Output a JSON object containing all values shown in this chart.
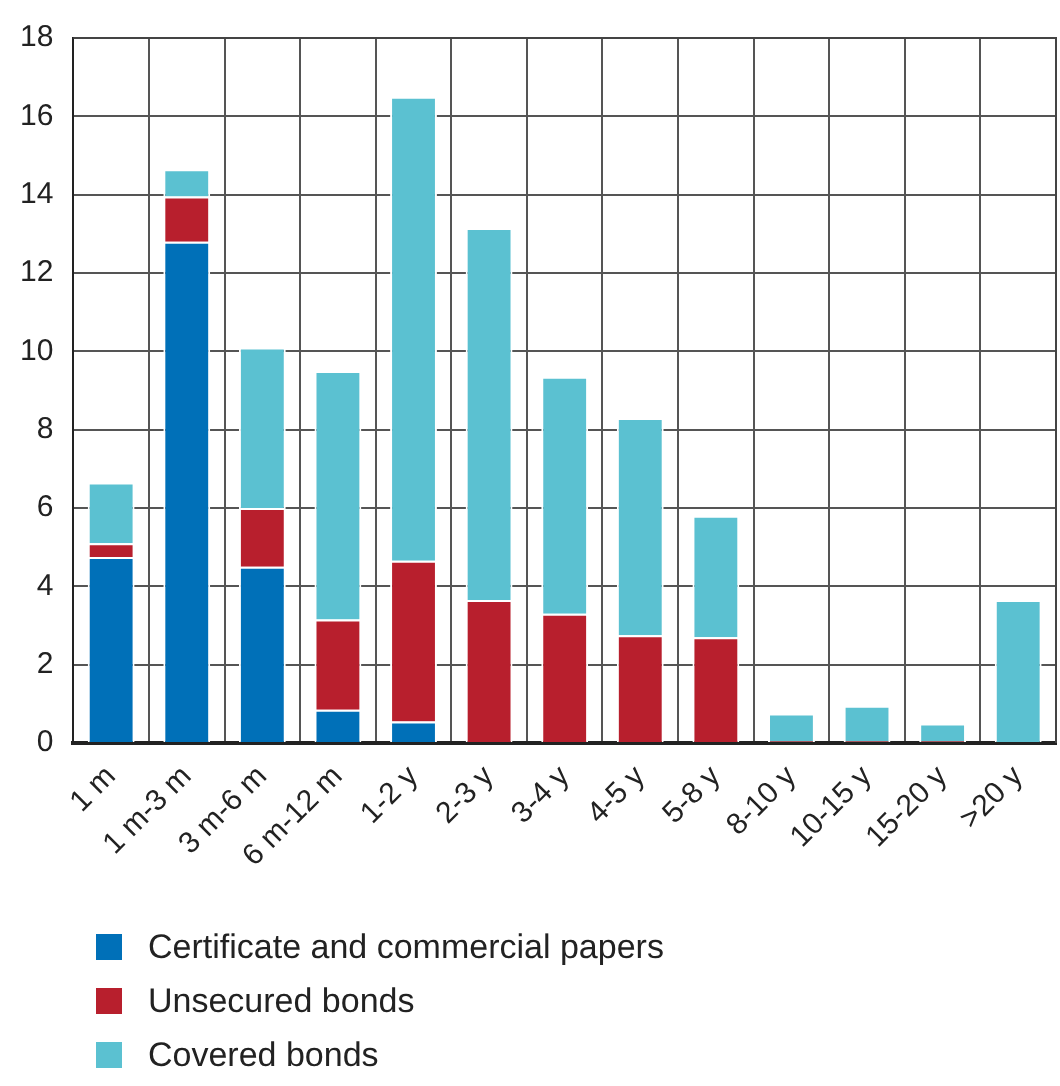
{
  "chart_data": {
    "type": "bar",
    "stacked": true,
    "categories": [
      "1 m",
      "1 m-3 m",
      "3 m-6 m",
      "6 m-12 m",
      "1-2 y",
      "2-3 y",
      "3-4 y",
      "4-5 y",
      "5-8 y",
      "8-10 y",
      "10-15 y",
      "15-20 y",
      ">20 y"
    ],
    "series": [
      {
        "name": "Certificate and commercial papers",
        "color": "#0070b8",
        "values": [
          4.75,
          12.8,
          4.5,
          0.85,
          0.55,
          0,
          0,
          0,
          0,
          0,
          0,
          0,
          0
        ]
      },
      {
        "name": "Unsecured bonds",
        "color": "#b81f2d",
        "values": [
          0.35,
          1.15,
          1.5,
          2.3,
          4.1,
          3.65,
          3.3,
          2.75,
          2.7,
          0.05,
          0.05,
          0.05,
          0
        ]
      },
      {
        "name": "Covered bonds",
        "color": "#5bc1d1",
        "values": [
          1.55,
          0.7,
          4.1,
          6.35,
          11.85,
          9.5,
          6.05,
          5.55,
          3.1,
          0.7,
          0.9,
          0.45,
          3.65
        ]
      }
    ],
    "ylim": [
      0,
      18
    ],
    "yticks": [
      0,
      2,
      4,
      6,
      8,
      10,
      12,
      14,
      16,
      18
    ],
    "grid": true,
    "legend": "bottom"
  }
}
